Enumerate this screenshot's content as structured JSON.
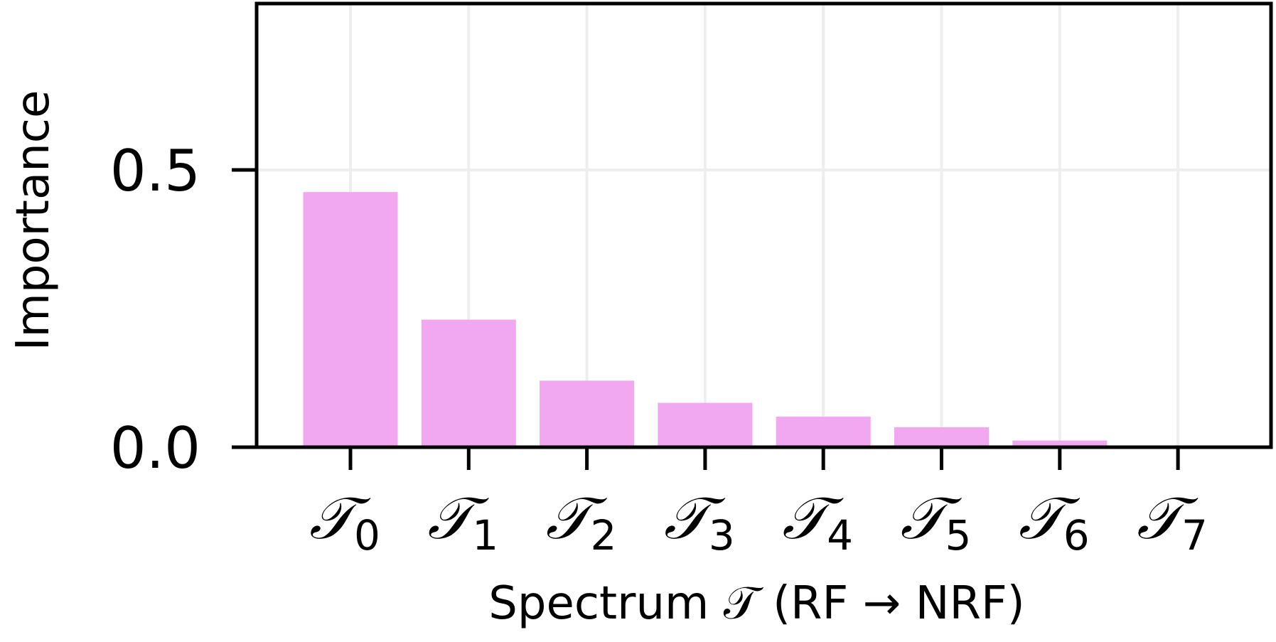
{
  "chart_data": {
    "type": "bar",
    "categories": [
      "𝒯0",
      "𝒯1",
      "𝒯2",
      "𝒯3",
      "𝒯4",
      "𝒯5",
      "𝒯6",
      "𝒯7"
    ],
    "category_symbol": "𝒯",
    "category_subscripts": [
      "0",
      "1",
      "2",
      "3",
      "4",
      "5",
      "6",
      "7"
    ],
    "values": [
      0.46,
      0.23,
      0.12,
      0.08,
      0.055,
      0.036,
      0.012,
      0.0
    ],
    "xlabel": "Spectrum 𝒯 (RF → NRF)",
    "ylabel": "Importance",
    "ylim": [
      0.0,
      0.8
    ],
    "yticks": [
      0.0,
      0.5
    ],
    "ytick_labels": [
      "0.0",
      "0.5"
    ],
    "grid": true,
    "bar_color": "#f2a8f0",
    "grid_color": "#eeeeee"
  }
}
